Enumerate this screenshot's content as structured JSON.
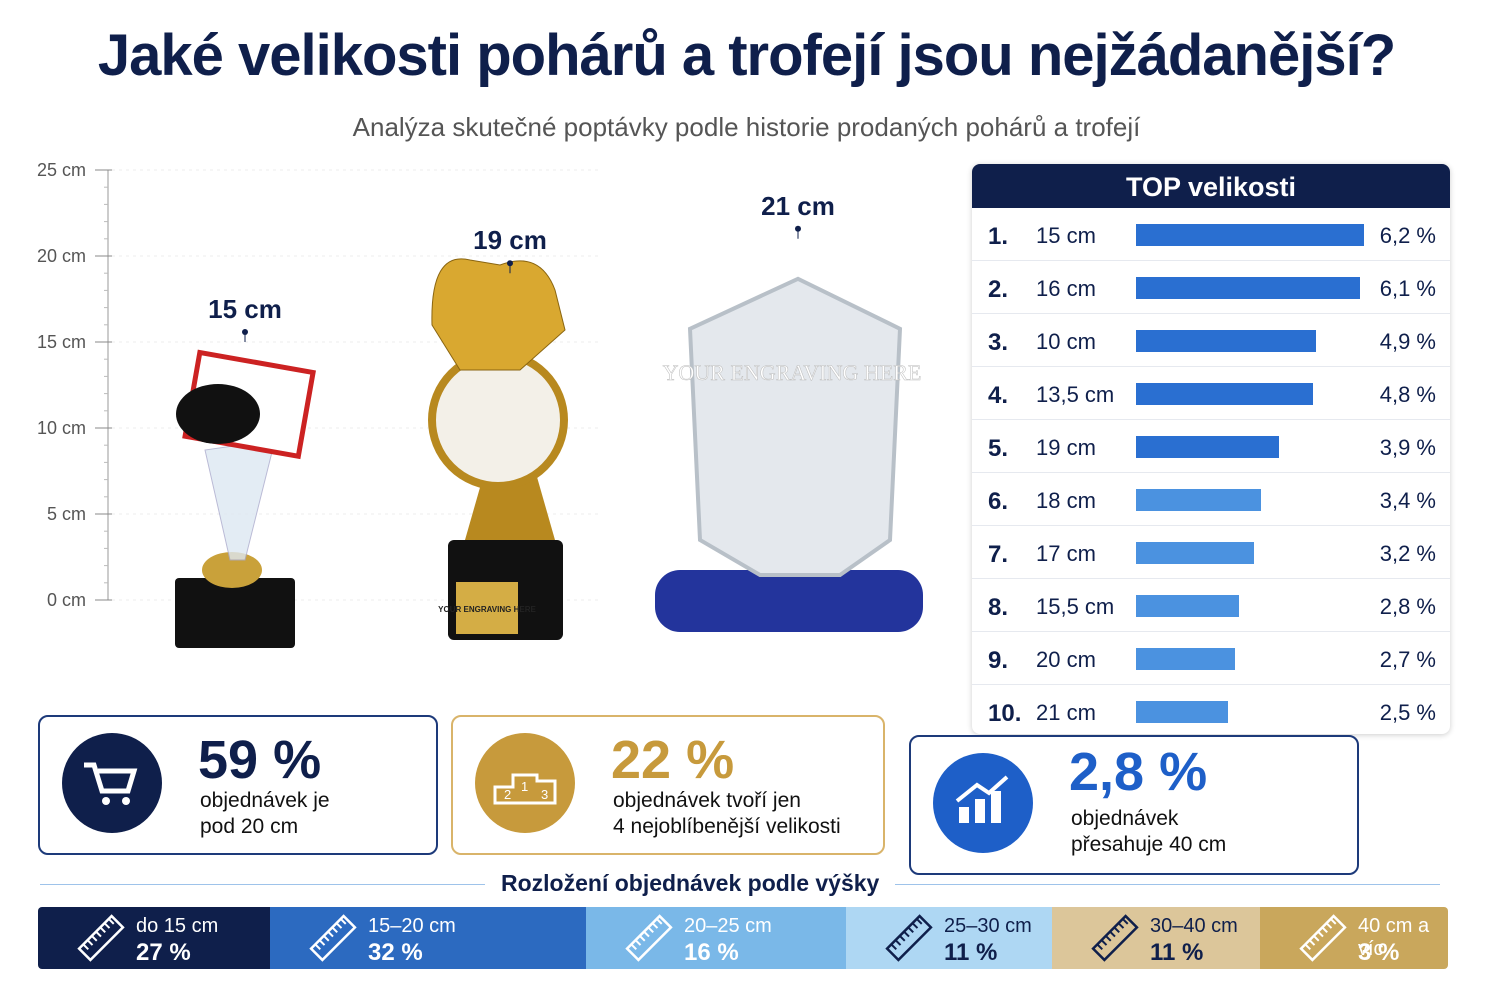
{
  "header": {
    "title": "Jaké velikosti pohárů a trofejí jsou nejžádanější?",
    "subtitle": "Analýza skutečné poptávky podle historie prodaných pohárů a trofejí"
  },
  "height_scale": {
    "lim": [
      0,
      25
    ],
    "ticks": [
      {
        "value": 0,
        "label": "0 cm"
      },
      {
        "value": 5,
        "label": "5 cm"
      },
      {
        "value": 10,
        "label": "10 cm"
      },
      {
        "value": 15,
        "label": "15 cm"
      },
      {
        "value": 20,
        "label": "20 cm"
      },
      {
        "value": 25,
        "label": "25 cm"
      }
    ]
  },
  "trophies": [
    {
      "label": "15 cm",
      "height": 15
    },
    {
      "label": "19 cm",
      "height": 19,
      "engraving": "YOUR ENGRAVING HERE"
    },
    {
      "label": "21 cm",
      "height": 21,
      "engraving": "YOUR ENGRAVING HERE"
    }
  ],
  "top_sizes": {
    "title": "TOP velikosti",
    "rows": [
      {
        "rank": "1.",
        "size": "15 cm",
        "value": 6.2,
        "value_label": "6,2 %"
      },
      {
        "rank": "2.",
        "size": "16 cm",
        "value": 6.1,
        "value_label": "6,1 %"
      },
      {
        "rank": "3.",
        "size": "10 cm",
        "value": 4.9,
        "value_label": "4,9 %"
      },
      {
        "rank": "4.",
        "size": "13,5 cm",
        "value": 4.8,
        "value_label": "4,8 %"
      },
      {
        "rank": "5.",
        "size": "19 cm",
        "value": 3.9,
        "value_label": "3,9 %"
      },
      {
        "rank": "6.",
        "size": "18 cm",
        "value": 3.4,
        "value_label": "3,4 %"
      },
      {
        "rank": "7.",
        "size": "17 cm",
        "value": 3.2,
        "value_label": "3,2 %"
      },
      {
        "rank": "8.",
        "size": "15,5 cm",
        "value": 2.8,
        "value_label": "2,8 %"
      },
      {
        "rank": "9.",
        "size": "20 cm",
        "value": 2.7,
        "value_label": "2,7 %"
      },
      {
        "rank": "10.",
        "size": "21 cm",
        "value": 2.5,
        "value_label": "2,5 %"
      }
    ]
  },
  "stats": [
    {
      "value": "59 %",
      "lines": [
        "objednávek je",
        "pod 20 cm"
      ]
    },
    {
      "value": "22 %",
      "lines": [
        "objednávek tvoří jen",
        "4 nejoblíbenější velikosti"
      ]
    },
    {
      "value": "2,8 %",
      "lines": [
        "objednávek",
        "přesahuje 40 cm"
      ]
    }
  ],
  "distribution": {
    "title": "Rozložení objednávek podle výšky",
    "segments": [
      {
        "range": "do 15 cm",
        "share": "27 %"
      },
      {
        "range": "15–20 cm",
        "share": "32 %"
      },
      {
        "range": "20–25 cm",
        "share": "16 %"
      },
      {
        "range": "25–30 cm",
        "share": "11 %"
      },
      {
        "range": "30–40 cm",
        "share": "11 %"
      },
      {
        "range": "40 cm a víc",
        "share": "3 %"
      }
    ]
  }
}
